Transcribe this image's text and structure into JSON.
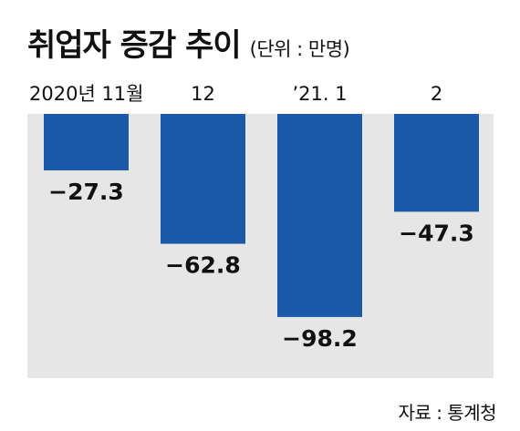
{
  "header": {
    "title": "취업자 증감 추이",
    "unit": "(단위 : 만명)"
  },
  "source": "자료 : 통계청",
  "colors": {
    "bar": "#1a5aa8",
    "plot_bg": "#e6e6e6"
  },
  "chart_data": {
    "type": "bar",
    "title": "취업자 증감 추이",
    "unit": "만명",
    "categories": [
      "2020년 11월",
      "12",
      "’21. 1",
      "2"
    ],
    "values": [
      -27.3,
      -62.8,
      -98.2,
      -47.3
    ],
    "data_labels": [
      "−27.3",
      "−62.8",
      "−98.2",
      "−47.3"
    ],
    "ylim": [
      -120,
      0
    ],
    "grid": false,
    "legend": "none"
  }
}
